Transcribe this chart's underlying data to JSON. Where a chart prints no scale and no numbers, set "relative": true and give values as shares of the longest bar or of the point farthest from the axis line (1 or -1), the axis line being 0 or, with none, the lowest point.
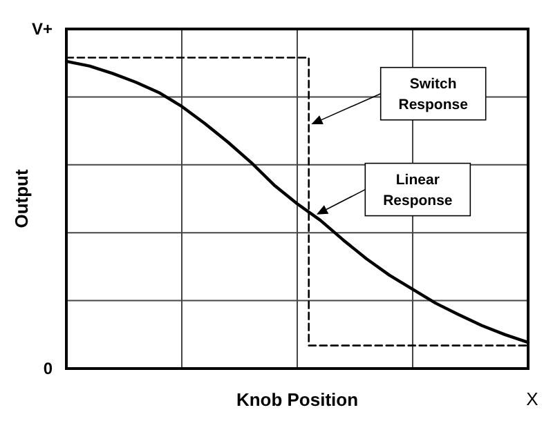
{
  "chart_data": {
    "type": "line",
    "xlabel": "Knob Position",
    "ylabel": "Output",
    "relative": true,
    "grid": true,
    "marker": "none",
    "categories": [
      null,
      null,
      null,
      null,
      null,
      null,
      null,
      null,
      null,
      null,
      null,
      null,
      null,
      null,
      null,
      null,
      null,
      null,
      null,
      null,
      null
    ],
    "series": [
      {
        "color": "#000000",
        "line_style": "solid",
        "values": [
          0.988,
          0.973,
          0.949,
          0.921,
          0.888,
          0.843,
          0.788,
          0.728,
          0.663,
          0.59,
          0.53,
          0.477,
          0.413,
          0.353,
          0.3,
          0.255,
          0.21,
          0.173,
          0.138,
          0.109,
          0.084
        ]
      },
      {
        "type": "step",
        "color": "#000000",
        "line_style": "dashed",
        "values": [
          1,
          1,
          1,
          1,
          1,
          1,
          1,
          1,
          1,
          1,
          1,
          0.074,
          0.074,
          0.074,
          0.074,
          0.074,
          0.074,
          0.074,
          0.074,
          0.074,
          0.074
        ]
      }
    ],
    "annotations": [
      "V+",
      "0",
      "X",
      "Switch Response",
      "Linear Response"
    ]
  }
}
